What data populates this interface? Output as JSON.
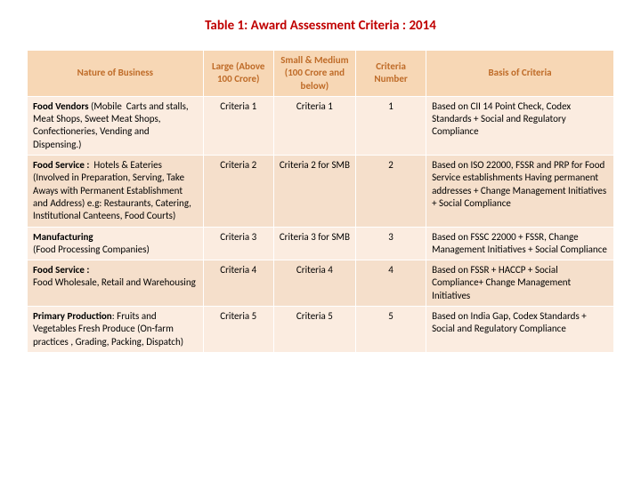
{
  "title": "Table 1: Award Assessment Criteria : 2014",
  "title_color": "#c00000",
  "title_fontsize": "15px",
  "table": {
    "header_bg": "#f7d7b5",
    "row_alt1_bg": "#fbece0",
    "row_alt2_bg": "#f5dfcb",
    "header_color": "#bf6c29",
    "col_widths": [
      "30%",
      "12%",
      "14%",
      "12%",
      "32%"
    ],
    "columns": [
      "Nature of Business",
      "Large (Above 100 Crore)",
      "Small & Medium (100 Crore and below)",
      "Criteria Number",
      "Basis of Criteria"
    ],
    "rows": [
      {
        "nature_bold": "Food Vendors",
        "nature_rest": " (Mobile  Carts and stalls, Meat Shops, Sweet Meat Shops, Confectioneries, Vending and Dispensing.)",
        "large": "Criteria 1",
        "smb": "Criteria 1",
        "num": "1",
        "basis": "Based on CII 14 Point Check, Codex Standards + Social and Regulatory Compliance"
      },
      {
        "nature_bold": "Food Service :",
        "nature_rest": "  Hotels & Eateries (Involved in Preparation, Serving, Take Aways with Permanent Establishment and Address) e.g: Restaurants, Catering, Institutional Canteens, Food Courts)",
        "large": "Criteria  2",
        "smb": "Criteria  2  for SMB",
        "num": "2",
        "basis": "Based on ISO 22000, FSSR and PRP for Food Service establishments  Having permanent addresses + Change Management Initiatives + Social Compliance"
      },
      {
        "nature_bold": "Manufacturing",
        "nature_rest": "\n(Food Processing Companies)",
        "large": "Criteria 3",
        "smb": "Criteria 3 for SMB",
        "num": "3",
        "basis": "Based on FSSC 22000 + FSSR, Change Management Initiatives + Social Compliance"
      },
      {
        "nature_bold": "Food Service :",
        "nature_rest": "\nFood Wholesale, Retail and Warehousing\n\n",
        "large": "Criteria 4",
        "smb": "Criteria 4",
        "num": "4",
        "basis": "Based on FSSR + HACCP + Social Compliance+ Change Management Initiatives"
      },
      {
        "nature_bold": "Primary Production",
        "nature_rest": ": Fruits and Vegetables Fresh Produce (On-farm practices , Grading, Packing, Dispatch)",
        "large": "Criteria 5",
        "smb": "Criteria 5",
        "num": "5",
        "basis": "Based on India Gap, Codex Standards + Social and Regulatory Compliance"
      }
    ]
  }
}
